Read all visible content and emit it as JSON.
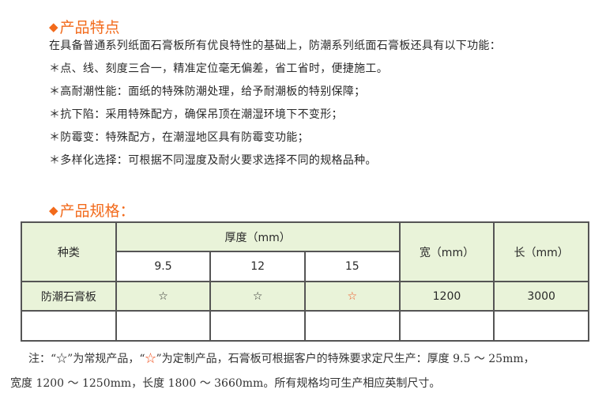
{
  "features": {
    "heading": "产品特点",
    "intro": "在具备普通系列纸面石膏板所有优良特性的基础上，防潮系列纸面石膏板还具有以下功能：",
    "items": [
      "＊点、线、刻度三合一，精准定位毫无偏差，省工省时，便捷施工。",
      "＊高耐潮性能：面纸的特殊防潮处理，给予耐潮板的特别保障；",
      "＊抗下陷：采用特殊配方，确保吊顶在潮湿环境下不变形；",
      "＊防霉变：特殊配方，在潮湿地区具有防霉变功能；",
      "＊多样化选择：可根据不同湿度及耐火要求选择不同的规格品种。"
    ]
  },
  "specs": {
    "heading": "产品规格：",
    "headers": {
      "type": "种类",
      "thickness": "厚度（mm）",
      "thickness_values": [
        "9.5",
        "12",
        "15"
      ],
      "width": "宽（mm）",
      "length": "长（mm）"
    },
    "rows": [
      {
        "type": "防潮石膏板",
        "marks": [
          "☆",
          "☆",
          "☆"
        ],
        "width": "1200",
        "length": "3000"
      }
    ],
    "colors": {
      "header_fill": "#e9f3d9",
      "accent": "#f26a1b",
      "custom_star": "#f0501e"
    }
  },
  "note": {
    "prefix": "注：“",
    "star_regular": "☆",
    "mid1": "”为常规产品，“",
    "star_custom": "☆",
    "mid2": "”为定制产品，石膏板可根据客户的特殊要求定尺生产：厚度 9.5 ～ 25mm，",
    "line2": "宽度 1200 ～ 1250mm，长度 1800 ～ 3660mm。所有规格均可生产相应英制尺寸。"
  }
}
